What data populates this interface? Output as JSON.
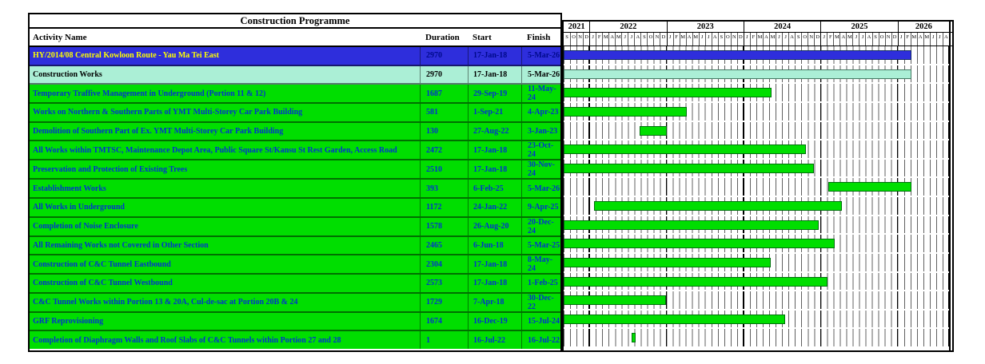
{
  "title": "Construction Programme",
  "columns": {
    "activity": "Activity Name",
    "duration": "Duration",
    "start": "Start",
    "finish": "Finish"
  },
  "colors": {
    "project_row": "#2e2edc",
    "project_text": "#ffff00",
    "summary_row": "#abefd6",
    "task_row": "#00de00",
    "bar_project": "#2e2edc",
    "bar_summary": "#abefd6",
    "bar_task": "#00de00",
    "gridline": "#606060",
    "year_line": "#000000"
  },
  "chart_data": {
    "type": "gantt",
    "timeline_start": "Sep-2021",
    "timeline_end": "Aug-2026",
    "total_months": 60,
    "years": [
      {
        "label": "2021",
        "months": [
          "S",
          "O",
          "N",
          "D"
        ]
      },
      {
        "label": "2022",
        "months": [
          "J",
          "F",
          "M",
          "A",
          "M",
          "J",
          "J",
          "A",
          "S",
          "O",
          "N",
          "D"
        ]
      },
      {
        "label": "2023",
        "months": [
          "J",
          "F",
          "M",
          "A",
          "M",
          "J",
          "J",
          "A",
          "S",
          "O",
          "N",
          "D"
        ]
      },
      {
        "label": "2024",
        "months": [
          "J",
          "F",
          "M",
          "A",
          "M",
          "J",
          "J",
          "A",
          "S",
          "O",
          "N",
          "D"
        ]
      },
      {
        "label": "2025",
        "months": [
          "J",
          "F",
          "M",
          "A",
          "M",
          "J",
          "J",
          "A",
          "S",
          "O",
          "N",
          "D"
        ]
      },
      {
        "label": "2026",
        "months": [
          "J",
          "F",
          "M",
          "A",
          "M",
          "J",
          "J",
          "A"
        ]
      }
    ],
    "tasks": [
      {
        "name": "HY/2014/08 Central Kowloon Route - Yau Ma Tei East",
        "duration": "2970",
        "start": "17-Jan-18",
        "finish": "5-Mar-26",
        "kind": "project",
        "bar": {
          "from": 0,
          "to": 54.16
        }
      },
      {
        "name": "Construction Works",
        "duration": "2970",
        "start": "17-Jan-18",
        "finish": "5-Mar-26",
        "kind": "summary",
        "bar": {
          "from": 0,
          "to": 54.16
        }
      },
      {
        "name": "Temporary Traffive Management in Underground (Portion 11 & 12)",
        "duration": "1687",
        "start": "29-Sep-19",
        "finish": "11-May-24",
        "kind": "task",
        "bar": {
          "from": 0,
          "to": 32.35
        }
      },
      {
        "name": "Works on Northern & Southern Parts of YMT Multi-Storey Car Park Building",
        "duration": "581",
        "start": "1-Sep-21",
        "finish": "4-Apr-23",
        "kind": "task",
        "bar": {
          "from": 0,
          "to": 19.13
        }
      },
      {
        "name": "Demolition of Southern Part of Ex. YMT Multi-Storey Car Park Building",
        "duration": "130",
        "start": "27-Aug-22",
        "finish": "3-Jan-23",
        "kind": "task",
        "bar": {
          "from": 11.87,
          "to": 16.1
        }
      },
      {
        "name": "All Works within TMTSC, Maintenance Depot Area, Public Square St/Kansu St Rest Garden, Access Road",
        "duration": "2472",
        "start": "17-Jan-18",
        "finish": "23-Oct-24",
        "kind": "task",
        "bar": {
          "from": 0,
          "to": 37.74
        }
      },
      {
        "name": "Preservation and Protection of Existing Trees",
        "duration": "2510",
        "start": "17-Jan-18",
        "finish": "30-Nov-24",
        "kind": "task",
        "bar": {
          "from": 0,
          "to": 38.97
        }
      },
      {
        "name": "Establishment Works",
        "duration": "393",
        "start": "6-Feb-25",
        "finish": "5-Mar-26",
        "kind": "task",
        "bar": {
          "from": 41.21,
          "to": 54.16
        }
      },
      {
        "name": "All Works in Underground",
        "duration": "1172",
        "start": "24-Jan-22",
        "finish": "9-Apr-25",
        "kind": "task",
        "bar": {
          "from": 4.77,
          "to": 43.3
        }
      },
      {
        "name": "Completion of Noise Enclosure",
        "duration": "1578",
        "start": "26-Aug-20",
        "finish": "20-Dec-24",
        "kind": "task",
        "bar": {
          "from": 0,
          "to": 39.65
        }
      },
      {
        "name": "All Remaining Works not Covered in Other Section",
        "duration": "2465",
        "start": "6-Jun-18",
        "finish": "5-Mar-25",
        "kind": "task",
        "bar": {
          "from": 0,
          "to": 42.16
        }
      },
      {
        "name": "Construction of  C&C Tunnel Eastbound",
        "duration": "2304",
        "start": "17-Jan-18",
        "finish": "8-May-24",
        "kind": "task",
        "bar": {
          "from": 0,
          "to": 32.26
        }
      },
      {
        "name": "Construction of  C&C Tunnel Westbound",
        "duration": "2573",
        "start": "17-Jan-18",
        "finish": "1-Feb-25",
        "kind": "task",
        "bar": {
          "from": 0,
          "to": 41.03
        }
      },
      {
        "name": "C&C Tunnel Works within Portion 13 & 20A, Cul-de-sac at Portion 20B & 24",
        "duration": "1729",
        "start": "7-Apr-18",
        "finish": "30-Dec-22",
        "kind": "task",
        "bar": {
          "from": 0,
          "to": 15.97
        }
      },
      {
        "name": "GRF Reprovisioning",
        "duration": "1674",
        "start": "16-Dec-19",
        "finish": "15-Jul-24",
        "kind": "task",
        "bar": {
          "from": 0,
          "to": 34.48
        }
      },
      {
        "name": "Completion of Diaphragm Walls and Roof Slabs of C&C Tunnels within Portion 27 and 28",
        "duration": "1",
        "start": "16-Jul-22",
        "finish": "16-Jul-22",
        "kind": "task",
        "bar": {
          "from": 10.52,
          "to": 10.77
        }
      }
    ]
  }
}
